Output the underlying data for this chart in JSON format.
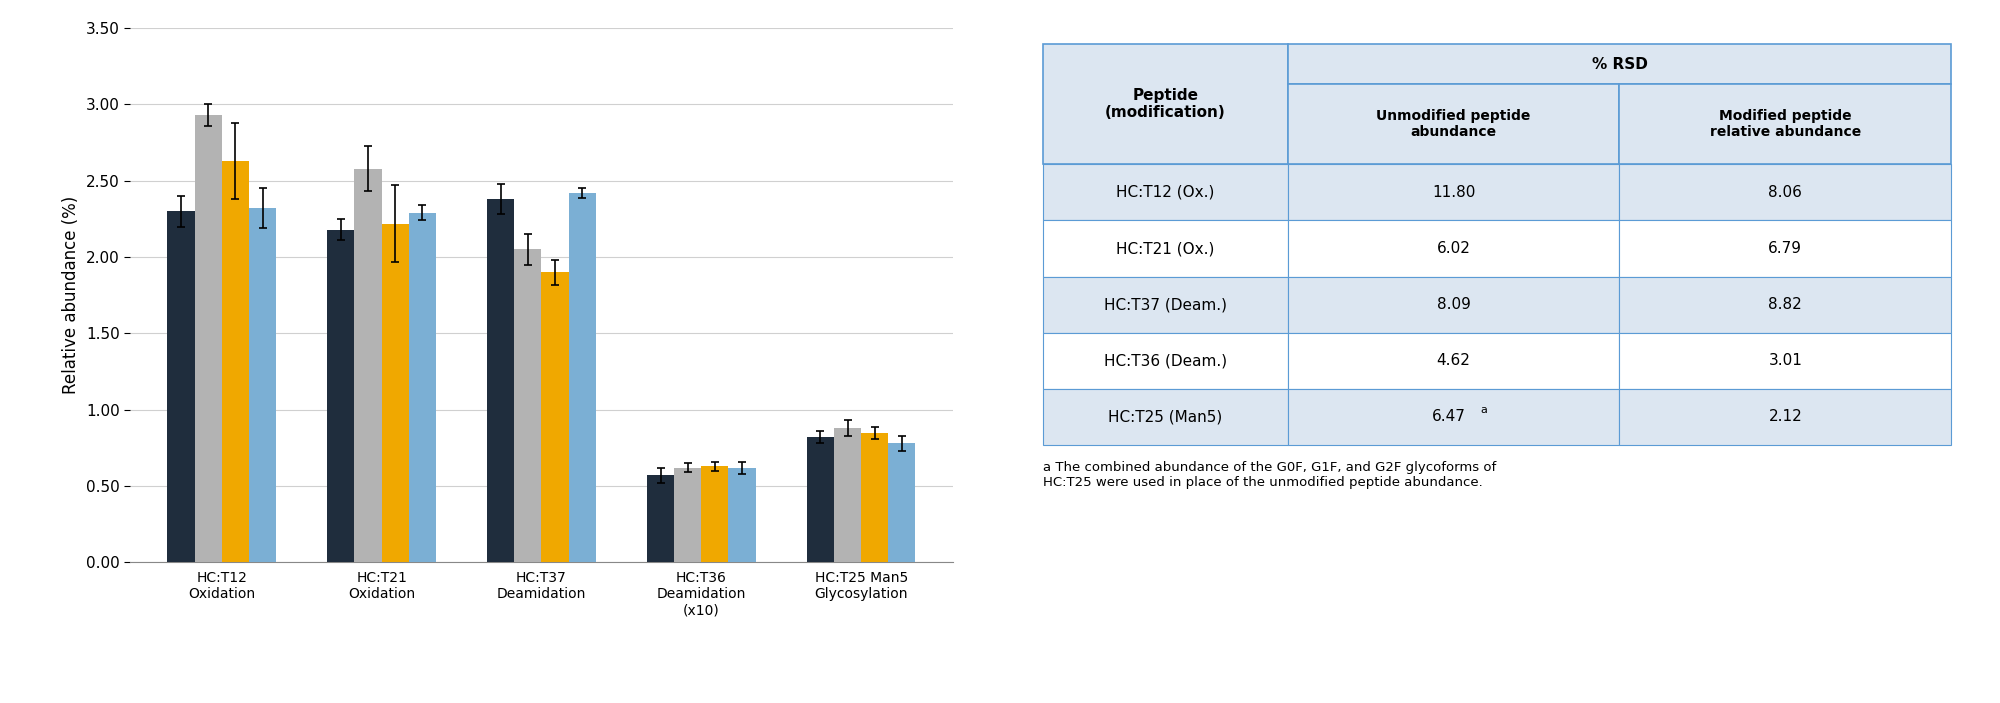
{
  "categories": [
    "HC:T12\nOxidation",
    "HC:T21\nOxidation",
    "HC:T37\nDeamidation",
    "HC:T36\nDeamidation\n(x10)",
    "HC:T25 Man5\nGlycosylation"
  ],
  "series": {
    "Manual": [
      2.3,
      2.18,
      2.38,
      0.57,
      0.82
    ],
    "Automated - Day 1": [
      2.93,
      2.58,
      2.05,
      0.62,
      0.88
    ],
    "Automated - Day 2": [
      2.63,
      2.22,
      1.9,
      0.63,
      0.85
    ],
    "Automated - Day 3": [
      2.32,
      2.29,
      2.42,
      0.62,
      0.78
    ]
  },
  "errors": {
    "Manual": [
      0.1,
      0.07,
      0.1,
      0.05,
      0.04
    ],
    "Automated - Day 1": [
      0.07,
      0.15,
      0.1,
      0.03,
      0.05
    ],
    "Automated - Day 2": [
      0.25,
      0.25,
      0.08,
      0.03,
      0.04
    ],
    "Automated - Day 3": [
      0.13,
      0.05,
      0.03,
      0.04,
      0.05
    ]
  },
  "colors": {
    "Manual": "#1f2d3d",
    "Automated - Day 1": "#b3b3b3",
    "Automated - Day 2": "#f0a800",
    "Automated - Day 3": "#7bafd4"
  },
  "ylim": [
    0,
    3.5
  ],
  "yticks": [
    0.0,
    0.5,
    1.0,
    1.5,
    2.0,
    2.5,
    3.0,
    3.5
  ],
  "ylabel": "Relative abundance (%)",
  "bar_width": 0.17,
  "table": {
    "rows": [
      [
        "HC:T12 (Ox.)",
        "11.80",
        "8.06"
      ],
      [
        "HC:T21 (Ox.)",
        "6.02",
        "6.79"
      ],
      [
        "HC:T37 (Deam.)",
        "8.09",
        "8.82"
      ],
      [
        "HC:T36 (Deam.)",
        "4.62",
        "3.01"
      ],
      [
        "HC:T25 (Man5)",
        "6.47a",
        "2.12"
      ]
    ],
    "footnote": "a The combined abundance of the G0F, G1F, and G2F glycoforms of\nHC:T25 were used in place of the unmodified peptide abundance.",
    "header_color": "#dce6f1",
    "white": "#ffffff",
    "border_color": "#5b9bd5"
  }
}
